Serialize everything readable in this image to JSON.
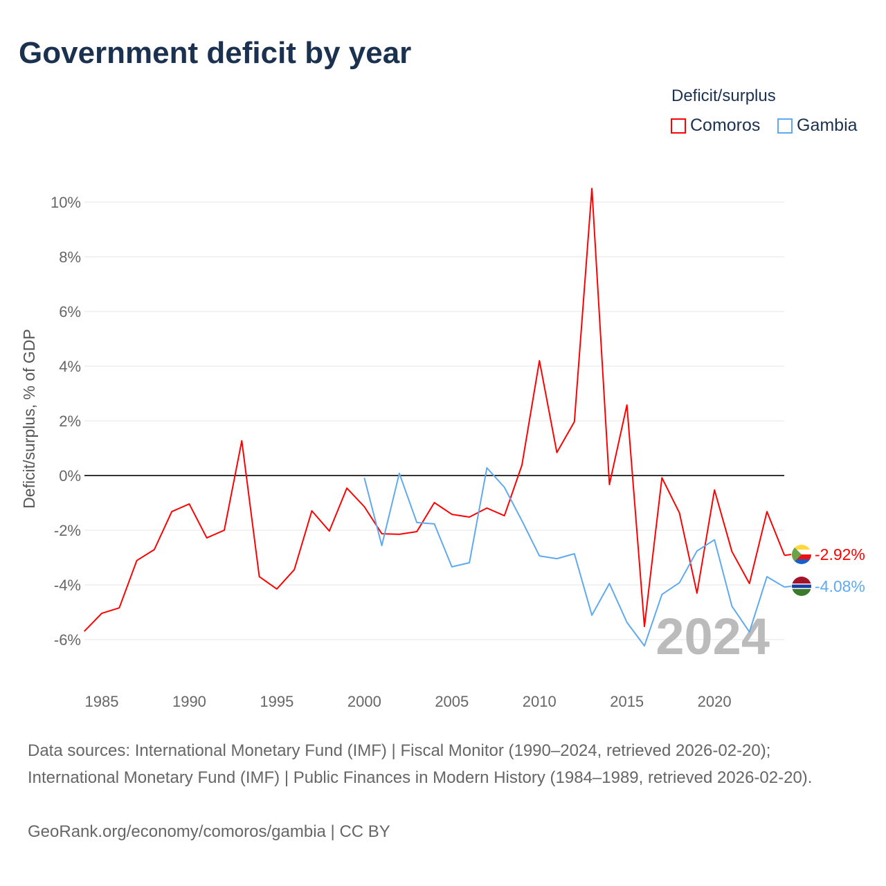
{
  "title": "Government deficit by year",
  "legend": {
    "title": "Deficit/surplus",
    "items": [
      "Comoros",
      "Gambia"
    ]
  },
  "footer": {
    "line1": "Data sources: International Monetary Fund (IMF) | Fiscal Monitor (1990–2024, retrieved 2026-02-20); International Monetary Fund (IMF) | Public Finances in Modern History (1984–1989, retrieved 2026-02-20).",
    "line2": "GeoRank.org/economy/comoros/gambia | CC BY"
  },
  "chart_data": {
    "type": "line",
    "title": "Government deficit by year",
    "ylabel": "Deficit/surplus, % of GDP",
    "ylim": [
      -6.6,
      10.6
    ],
    "xlim": [
      1984,
      2024
    ],
    "yticks": [
      -6,
      -4,
      -2,
      0,
      2,
      4,
      6,
      8,
      10
    ],
    "ytick_labels": [
      "-6%",
      "-4%",
      "-2%",
      "0%",
      "2%",
      "4%",
      "6%",
      "8%",
      "10%"
    ],
    "xticks": [
      1985,
      1990,
      1995,
      2000,
      2005,
      2010,
      2015,
      2020
    ],
    "year_label": "2024",
    "series": [
      {
        "name": "Comoros",
        "color": "#ff0000",
        "end_label": "-2.92%",
        "start": 1984,
        "values": [
          -5.7,
          -5.04,
          -4.84,
          -3.11,
          -2.71,
          -1.32,
          -1.04,
          -2.28,
          -2.0,
          1.27,
          -3.7,
          -4.15,
          -3.44,
          -1.29,
          -2.03,
          -0.46,
          -1.14,
          -2.13,
          -2.15,
          -2.05,
          -0.99,
          -1.42,
          -1.52,
          -1.19,
          -1.47,
          0.38,
          4.2,
          0.84,
          1.97,
          10.5,
          -0.33,
          2.58,
          -5.52,
          -0.08,
          -1.37,
          -4.3,
          -0.53,
          -2.78,
          -3.95,
          -1.32,
          -2.92
        ]
      },
      {
        "name": "Gambia",
        "color": "#5ea9ef",
        "end_label": "-4.08%",
        "start": 2000,
        "values": [
          -0.08,
          -2.56,
          0.08,
          -1.72,
          -1.77,
          -3.34,
          -3.19,
          0.28,
          -0.43,
          -1.65,
          -2.94,
          -3.04,
          -2.86,
          -5.11,
          -3.95,
          -5.37,
          -6.23,
          -4.35,
          -3.92,
          -2.76,
          -2.35,
          -4.78,
          -5.72,
          -3.7,
          -4.08
        ]
      }
    ]
  }
}
